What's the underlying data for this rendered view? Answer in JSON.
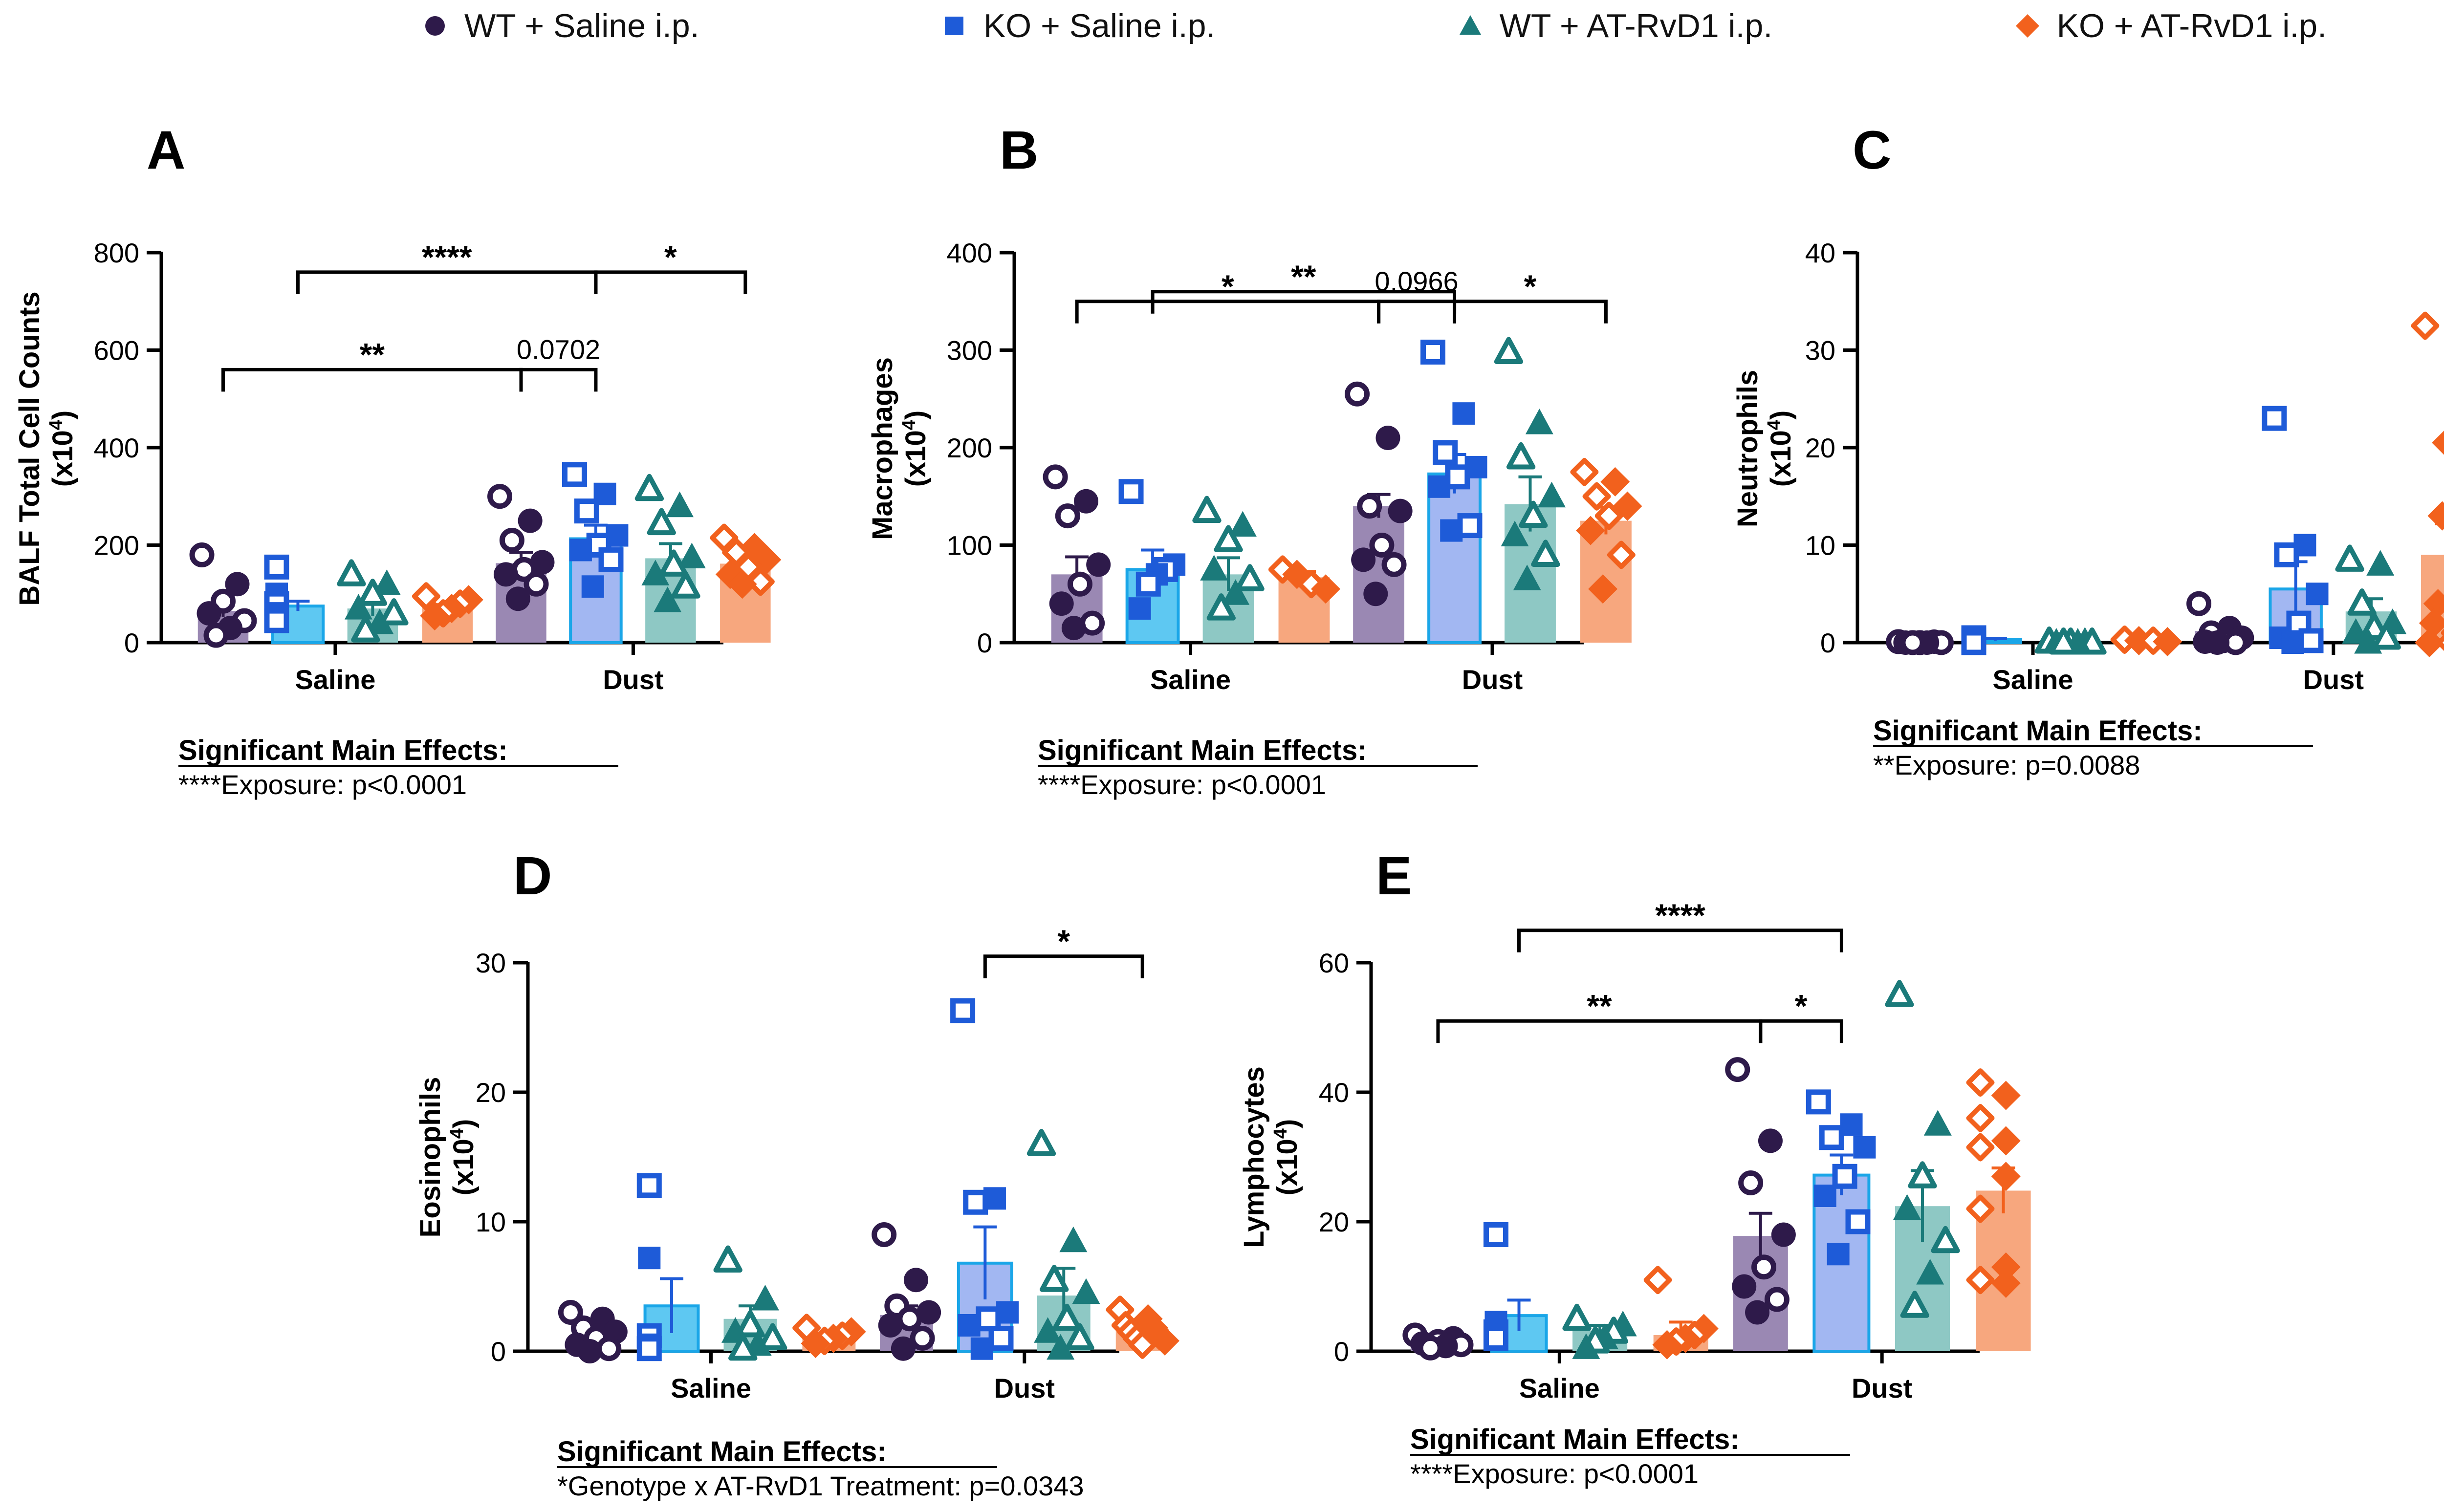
{
  "legend": [
    {
      "label": "WT + Saline i.p.",
      "marker": "circle",
      "color": "#2e1a4a"
    },
    {
      "label": "KO + Saline i.p.",
      "marker": "square",
      "color": "#1e5bd8"
    },
    {
      "label": "WT + AT-RvD1 i.p.",
      "marker": "triangle",
      "color": "#1b7a7a"
    },
    {
      "label": "KO + AT-RvD1 i.p.",
      "marker": "diamond",
      "color": "#f2611d"
    }
  ],
  "groups": [
    "WT + Saline i.p.",
    "KO + Saline i.p.",
    "WT + AT-RvD1 i.p.",
    "KO + AT-RvD1 i.p."
  ],
  "colors": {
    "markers": [
      "#2e1a4a",
      "#1e5bd8",
      "#1b7a7a",
      "#f2611d"
    ],
    "bars": [
      "#9a88b3",
      "#5ec8f2",
      "#8ec8c4",
      "#f7a77e"
    ],
    "dust_bars": [
      "#9a88b3",
      "#a2b7f2",
      "#8ec8c4",
      "#f7a77e"
    ]
  },
  "chart_data": [
    {
      "id": "A",
      "panel_label": "A",
      "type": "bar",
      "ylabel": "BALF Total Cell Counts",
      "yunit": "(x10",
      "yexp": "4",
      "yunit_end": ")",
      "ylim": [
        0,
        800
      ],
      "yticks": [
        "0",
        "200",
        "400",
        "600",
        "800"
      ],
      "categories": [
        "Saline",
        "Dust"
      ],
      "series": [
        {
          "name": "WT + Saline i.p.",
          "values": [
            65,
            163
          ],
          "sem": [
            12,
            22
          ],
          "points": [
            [
              180,
              120,
              85,
              60,
              45,
              30,
              15
            ],
            [
              300,
              250,
              210,
              165,
              150,
              140,
              120,
              90
            ]
          ]
        },
        {
          "name": "KO + Saline i.p.",
          "values": [
            75,
            213
          ],
          "sem": [
            10,
            28
          ],
          "points": [
            [
              155,
              100,
              80,
              60,
              45
            ],
            [
              345,
              305,
              270,
              220,
              200,
              190,
              170,
              115
            ]
          ]
        },
        {
          "name": "WT + AT-RvD1 i.p.",
          "values": [
            70,
            173
          ],
          "sem": [
            15,
            30
          ],
          "points": [
            [
              140,
              120,
              100,
              70,
              60,
              40,
              25
            ],
            [
              315,
              280,
              245,
              175,
              160,
              140,
              115,
              85
            ]
          ]
        },
        {
          "name": "KO + AT-RvD1 i.p.",
          "values": [
            72,
            162
          ],
          "sem": [
            6,
            12
          ],
          "points": [
            [
              95,
              88,
              80,
              70,
              60,
              55
            ],
            [
              215,
              195,
              185,
              170,
              155,
              140,
              125,
              120
            ]
          ]
        }
      ],
      "brackets": [
        {
          "from": [
            0,
            1
          ],
          "to": [
            1,
            1
          ],
          "level": 760,
          "label": "****"
        },
        {
          "from": [
            1,
            1
          ],
          "to": [
            1,
            3
          ],
          "level": 760,
          "label": "*"
        },
        {
          "from": [
            0,
            0
          ],
          "to": [
            1,
            0
          ],
          "level": 560,
          "label": "**"
        },
        {
          "from": [
            1,
            0
          ],
          "to": [
            1,
            1
          ],
          "level": 560,
          "label": "0.0702"
        }
      ],
      "effects_title": "Significant Main Effects:",
      "effects": "****Exposure: p<0.0001"
    },
    {
      "id": "B",
      "panel_label": "B",
      "type": "bar",
      "ylabel": "Macrophages",
      "yunit": "(x10",
      "yexp": "4",
      "yunit_end": ")",
      "ylim": [
        0,
        400
      ],
      "yticks": [
        "0",
        "100",
        "200",
        "300",
        "400"
      ],
      "categories": [
        "Saline",
        "Dust"
      ],
      "series": [
        {
          "name": "WT + Saline i.p.",
          "values": [
            70,
            140
          ],
          "sem": [
            18,
            12
          ],
          "points": [
            [
              170,
              145,
              130,
              80,
              60,
              40,
              20,
              15
            ],
            [
              255,
              210,
              140,
              135,
              100,
              85,
              80,
              50
            ]
          ]
        },
        {
          "name": "KO + Saline i.p.",
          "values": [
            75,
            173
          ],
          "sem": [
            20,
            20
          ],
          "points": [
            [
              155,
              80,
              75,
              70,
              60,
              35
            ],
            [
              298,
              235,
              195,
              180,
              170,
              160,
              120,
              115
            ]
          ]
        },
        {
          "name": "WT + AT-RvD1 i.p.",
          "values": [
            70,
            142
          ],
          "sem": [
            17,
            28
          ],
          "points": [
            [
              135,
              120,
              105,
              75,
              65,
              50,
              35
            ],
            [
              298,
              225,
              190,
              150,
              130,
              110,
              90,
              65
            ]
          ]
        },
        {
          "name": "KO + AT-RvD1 i.p.",
          "values": [
            67,
            125
          ],
          "sem": [
            6,
            14
          ],
          "points": [
            [
              75,
              70,
              60,
              55
            ],
            [
              175,
              165,
              150,
              140,
              130,
              115,
              90,
              55
            ]
          ]
        }
      ],
      "brackets": [
        {
          "from": [
            0,
            1
          ],
          "to": [
            1,
            1
          ],
          "level": 360,
          "label": "**"
        },
        {
          "from": [
            0,
            0
          ],
          "to": [
            1,
            0
          ],
          "level": 350,
          "label": "*",
          "drop": "low"
        },
        {
          "from": [
            1,
            0
          ],
          "to": [
            1,
            1
          ],
          "level": 350,
          "label": "0.0966",
          "drop": "low"
        },
        {
          "from": [
            1,
            1
          ],
          "to": [
            1,
            3
          ],
          "level": 350,
          "label": "*",
          "drop": "low"
        }
      ],
      "effects_title": "Significant Main Effects:",
      "effects": "****Exposure: p<0.0001"
    },
    {
      "id": "C",
      "panel_label": "C",
      "type": "bar",
      "ylabel": "Neutrophils",
      "yunit": "(x10",
      "yexp": "4",
      "yunit_end": ")",
      "ylim": [
        0,
        40
      ],
      "yticks": [
        "0",
        "10",
        "20",
        "30",
        "40"
      ],
      "categories": [
        "Saline",
        "Dust"
      ],
      "series": [
        {
          "name": "WT + Saline i.p.",
          "values": [
            0.1,
            1.2
          ],
          "sem": [
            0.05,
            0.5
          ],
          "points": [
            [
              0.1,
              0.1,
              0,
              0,
              0,
              0,
              0
            ],
            [
              4,
              1.5,
              1,
              0.5,
              0.2,
              0.1,
              0,
              0
            ]
          ]
        },
        {
          "name": "KO + Saline i.p.",
          "values": [
            0.3,
            5.5
          ],
          "sem": [
            0.1,
            2.8
          ],
          "points": [
            [
              0.5,
              0.3,
              0.2,
              0,
              0
            ],
            [
              23,
              10,
              9,
              5,
              2,
              0.5,
              0.2,
              0
            ]
          ]
        },
        {
          "name": "WT + AT-RvD1 i.p.",
          "values": [
            0.1,
            3.2
          ],
          "sem": [
            0.05,
            1.3
          ],
          "points": [
            [
              0.1,
              0.1,
              0,
              0,
              0,
              0,
              0
            ],
            [
              8.5,
              8,
              4,
              2,
              1.5,
              1,
              0.5,
              0
            ]
          ]
        },
        {
          "name": "KO + AT-RvD1 i.p.",
          "values": [
            0.2,
            9
          ],
          "sem": [
            0.05,
            3.2
          ],
          "points": [
            [
              0.3,
              0.2,
              0.2,
              0.1
            ],
            [
              32.5,
              20.5,
              20,
              13,
              8.5,
              4,
              3,
              2,
              1,
              0,
              0
            ]
          ]
        }
      ],
      "brackets": [],
      "effects_title": "Significant Main Effects:",
      "effects": "**Exposure: p=0.0088"
    },
    {
      "id": "D",
      "panel_label": "D",
      "type": "bar",
      "ylabel": "Eosinophils",
      "yunit": "(x10",
      "yexp": "4",
      "yunit_end": ")",
      "ylim": [
        0,
        30
      ],
      "yticks": [
        "0",
        "10",
        "20",
        "30"
      ],
      "categories": [
        "Saline",
        "Dust"
      ],
      "series": [
        {
          "name": "WT + Saline i.p.",
          "values": [
            1.0,
            2.8
          ],
          "sem": [
            0.4,
            0.7
          ],
          "points": [
            [
              3,
              2.5,
              1.8,
              1.5,
              1,
              0.5,
              0.2,
              0
            ],
            [
              9,
              5.5,
              3.5,
              3,
              2.5,
              2,
              1,
              0.2
            ]
          ]
        },
        {
          "name": "KO + Saline i.p.",
          "values": [
            3.5,
            6.8
          ],
          "sem": [
            2.1,
            2.8
          ],
          "points": [
            [
              12.8,
              7.2,
              1.2,
              0.5,
              0.2
            ],
            [
              26.3,
              11.8,
              11.5,
              3,
              2.5,
              2,
              1,
              0.2
            ]
          ]
        },
        {
          "name": "WT + AT-RvD1 i.p.",
          "values": [
            2.5,
            4.3
          ],
          "sem": [
            1.0,
            2.1
          ],
          "points": [
            [
              7,
              4,
              2,
              1.5,
              1,
              0.5,
              0.2
            ],
            [
              16,
              8.5,
              5.5,
              4.5,
              2.5,
              1.5,
              1,
              0.2
            ]
          ]
        },
        {
          "name": "KO + AT-RvD1 i.p.",
          "values": [
            1.2,
            1.7
          ],
          "sem": [
            0.2,
            0.3
          ],
          "points": [
            [
              1.8,
              1.5,
              1.2,
              1,
              0.8,
              0.6
            ],
            [
              3.2,
              2.5,
              2,
              1.8,
              1.5,
              1.2,
              1,
              0.8,
              0.5
            ]
          ]
        }
      ],
      "brackets": [
        {
          "from": [
            1,
            1
          ],
          "to": [
            1,
            3
          ],
          "level": 30.5,
          "label": "*"
        }
      ],
      "effects_title": "Significant Main Effects:",
      "effects": "*Genotype x AT-RvD1 Treatment: p=0.0343"
    },
    {
      "id": "E",
      "panel_label": "E",
      "type": "bar",
      "ylabel": "Lymphocytes",
      "yunit": "(x10",
      "yexp": "4",
      "yunit_end": ")",
      "ylim": [
        0,
        60
      ],
      "yticks": [
        "0",
        "20",
        "40",
        "60"
      ],
      "categories": [
        "Saline",
        "Dust"
      ],
      "series": [
        {
          "name": "WT + Saline i.p.",
          "values": [
            1.3,
            17.8
          ],
          "sem": [
            0.3,
            3.5
          ],
          "points": [
            [
              2.5,
              2,
              1.5,
              1.2,
              1,
              0.8,
              0.5
            ],
            [
              43.5,
              32.5,
              26,
              18,
              13,
              10,
              8,
              6
            ]
          ]
        },
        {
          "name": "KO + Saline i.p.",
          "values": [
            5.5,
            27.2
          ],
          "sem": [
            2.4,
            3.1
          ],
          "points": [
            [
              18,
              4.5,
              3,
              2.5,
              2
            ],
            [
              38.5,
              35,
              33,
              31.5,
              27,
              24,
              20,
              15
            ]
          ]
        },
        {
          "name": "WT + AT-RvD1 i.p.",
          "values": [
            3.2,
            22.4
          ],
          "sem": [
            0.8,
            5.5
          ],
          "points": [
            [
              5,
              4,
              3,
              2,
              1.5,
              0.5
            ],
            [
              55,
              35,
              27,
              22,
              17,
              12,
              7
            ]
          ]
        },
        {
          "name": "KO + AT-RvD1 i.p.",
          "values": [
            2.5,
            24.8
          ],
          "sem": [
            2,
            3.5
          ],
          "points": [
            [
              11,
              3.5,
              2.5,
              2,
              1.5,
              1
            ],
            [
              41.5,
              39.5,
              36,
              32.5,
              31.5,
              27,
              22,
              13,
              11,
              10.5
            ]
          ]
        }
      ],
      "brackets": [
        {
          "from": [
            0,
            1
          ],
          "to": [
            1,
            1
          ],
          "level": 65,
          "label": "****"
        },
        {
          "from": [
            0,
            0
          ],
          "to": [
            1,
            0
          ],
          "level": 51,
          "label": "**"
        },
        {
          "from": [
            1,
            0
          ],
          "to": [
            1,
            1
          ],
          "level": 51,
          "label": "*"
        }
      ],
      "effects_title": "Significant Main Effects:",
      "effects": "****Exposure: p<0.0001"
    }
  ]
}
